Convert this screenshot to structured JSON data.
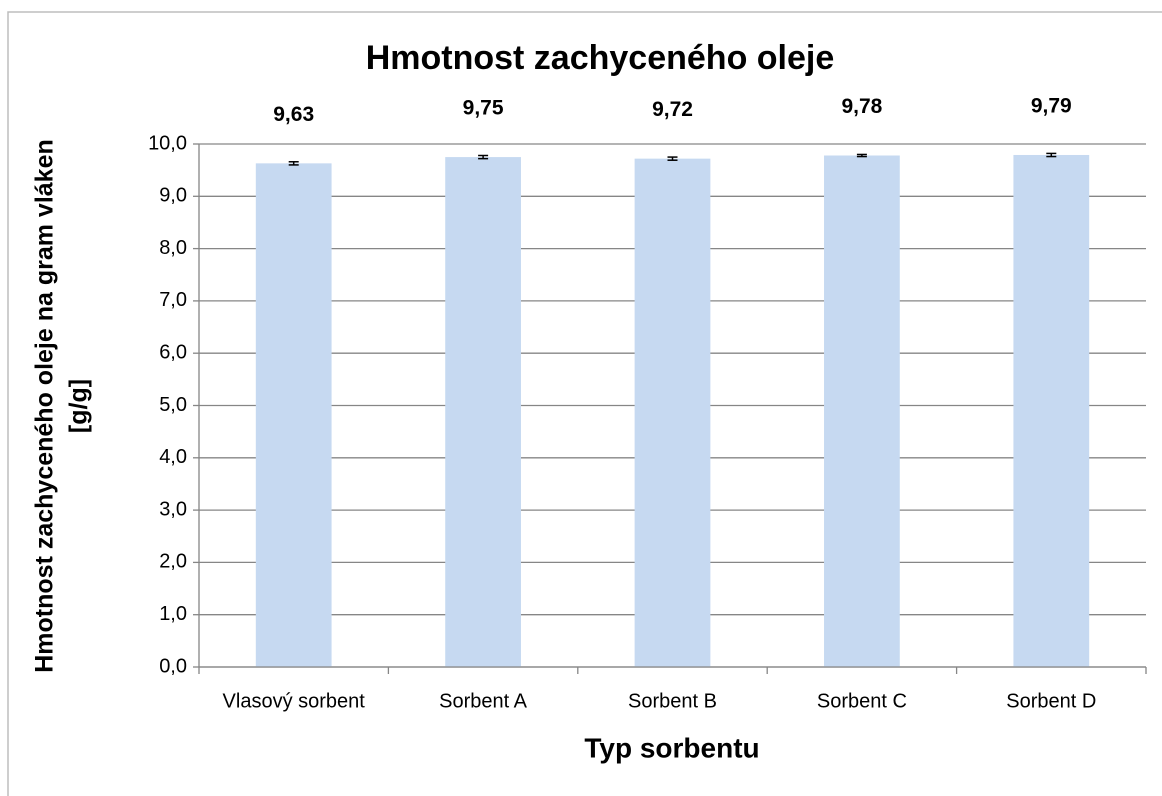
{
  "chart_data": {
    "type": "bar",
    "title": "Hmotnost zachyceného oleje",
    "x_label": "Typ sorbentu",
    "y_label": [
      "Hmotnost zachyceného oleje na gram vláken",
      "[g/g]"
    ],
    "categories": [
      "Vlasový sorbent",
      "Sorbent A",
      "Sorbent B",
      "Sorbent C",
      "Sorbent D"
    ],
    "values": [
      9.63,
      9.75,
      9.72,
      9.78,
      9.79
    ],
    "value_labels": [
      "9,63",
      "9,75",
      "9,72",
      "9,78",
      "9,79"
    ],
    "errors": [
      0.03,
      0.03,
      0.03,
      0.02,
      0.03
    ],
    "color": "#c6d9f1",
    "ylim": [
      0,
      10
    ],
    "yticks": [
      {
        "value": 0,
        "label": "0,0"
      },
      {
        "value": 1,
        "label": "1,0"
      },
      {
        "value": 2,
        "label": "2,0"
      },
      {
        "value": 3,
        "label": "3,0"
      },
      {
        "value": 4,
        "label": "4,0"
      },
      {
        "value": 5,
        "label": "5,0"
      },
      {
        "value": 6,
        "label": "6,0"
      },
      {
        "value": 7,
        "label": "7,0"
      },
      {
        "value": 8,
        "label": "8,0"
      },
      {
        "value": 9,
        "label": "9,0"
      },
      {
        "value": 10,
        "label": "10,0"
      }
    ],
    "grid": true
  }
}
